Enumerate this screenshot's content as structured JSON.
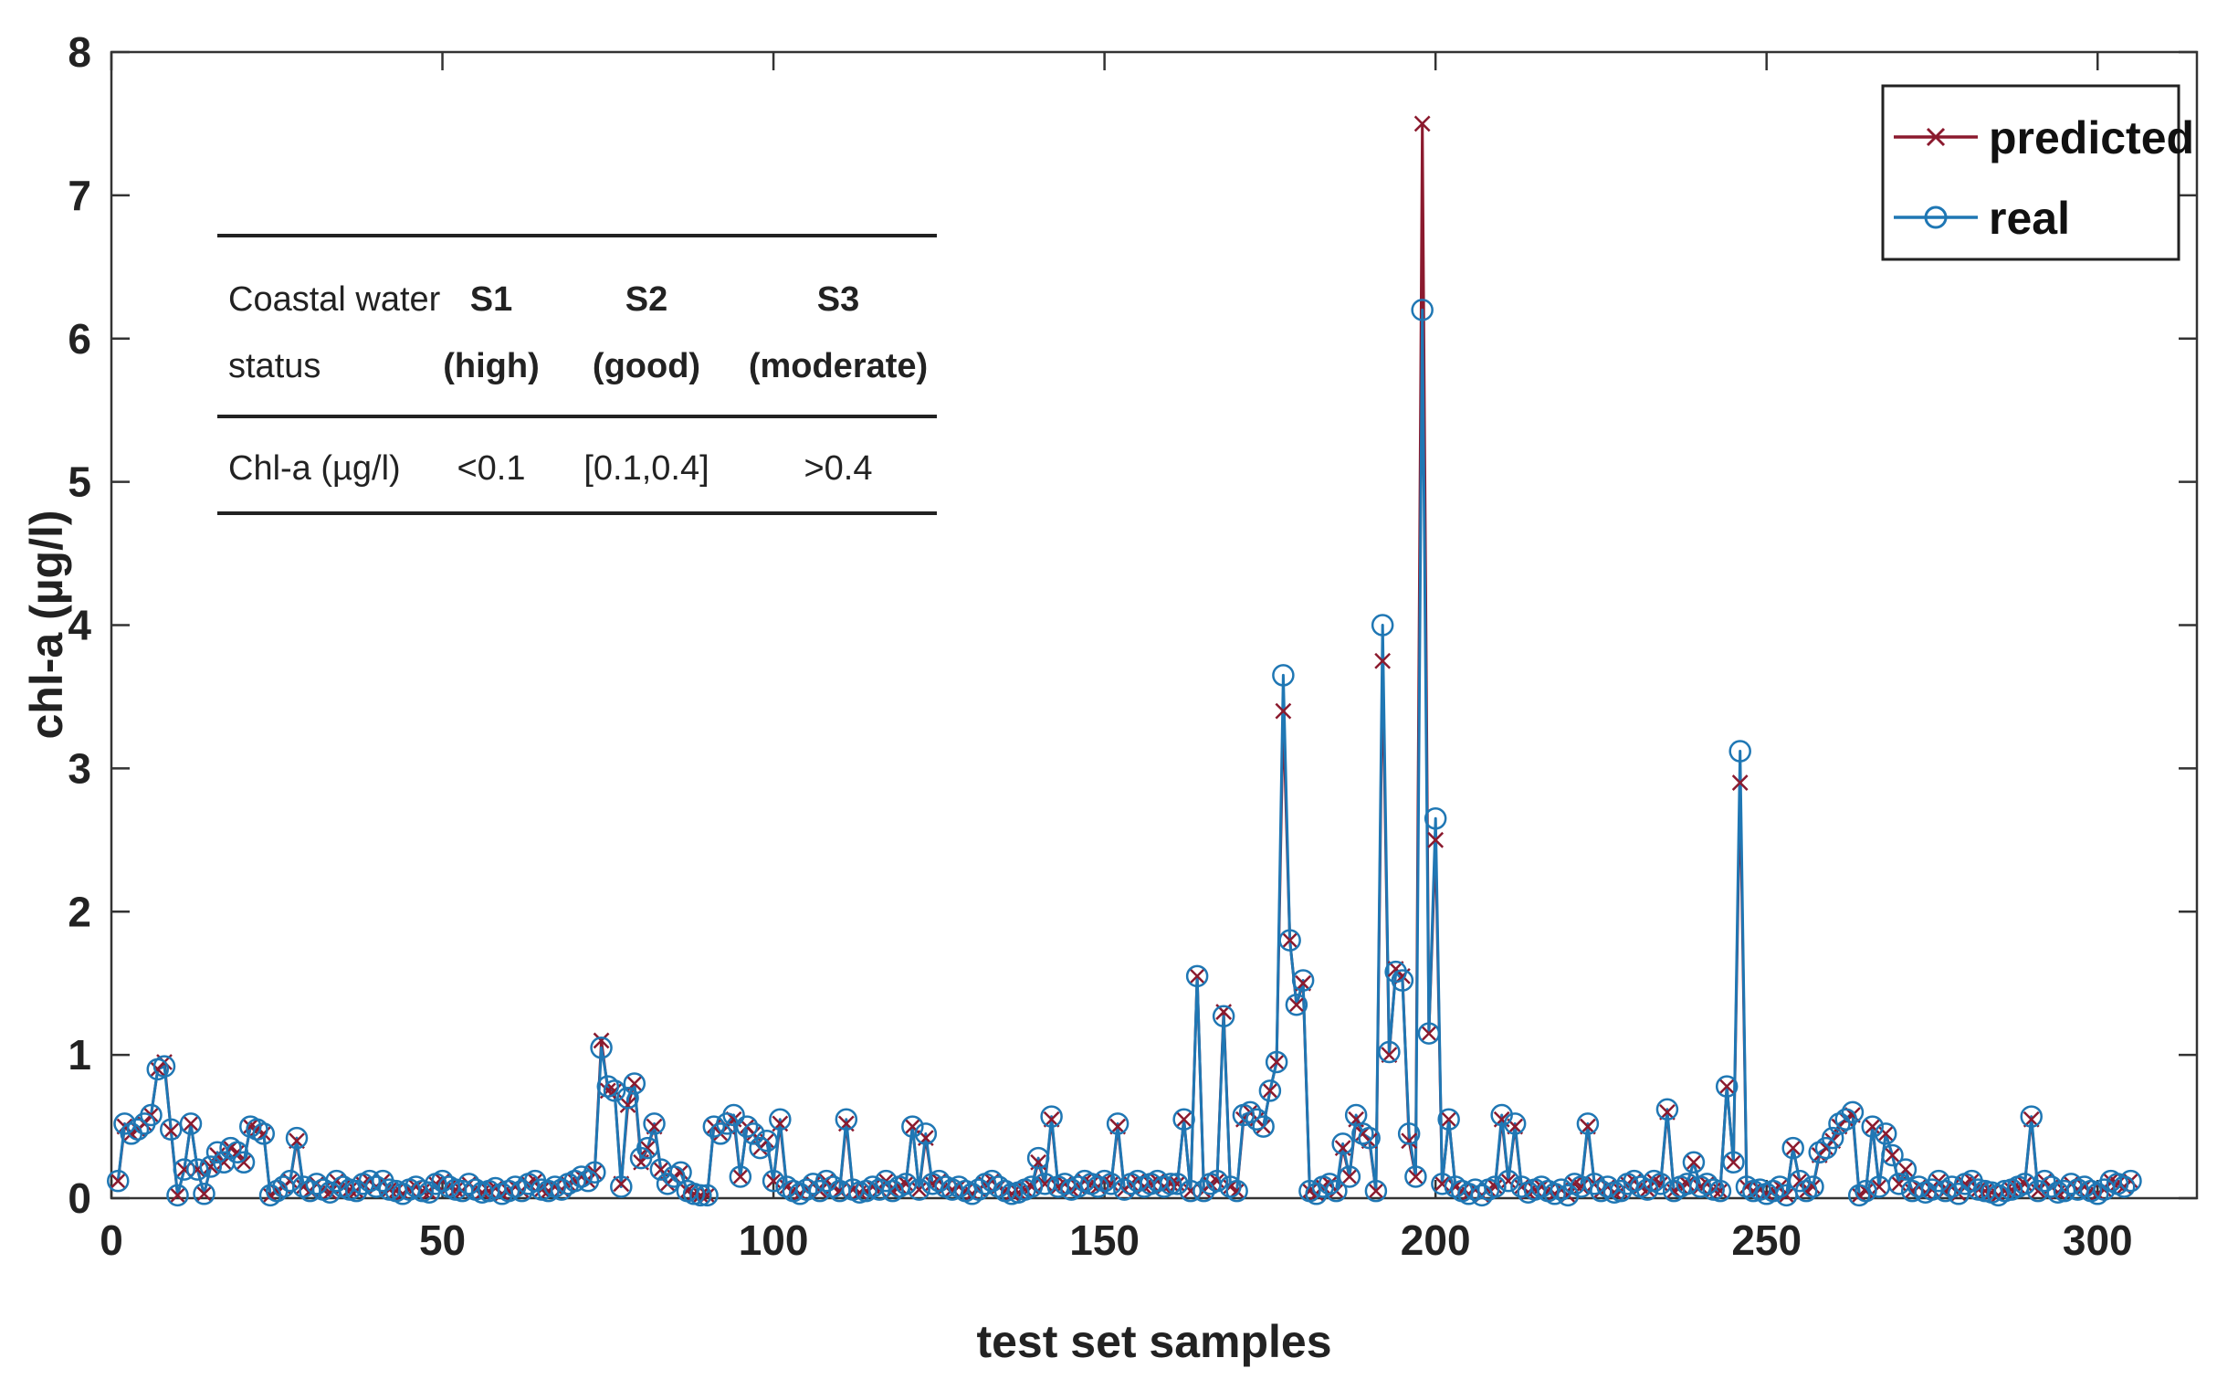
{
  "chart_data": {
    "type": "line",
    "xlabel": "test set samples",
    "ylabel": "chl-a (µg/l)",
    "xlim": [
      0,
      315
    ],
    "ylim": [
      0,
      8
    ],
    "xticks": [
      0,
      50,
      100,
      150,
      200,
      250,
      300
    ],
    "yticks": [
      0,
      1,
      2,
      3,
      4,
      5,
      6,
      7,
      8
    ],
    "grid": false,
    "legend_position": "top-right",
    "series": [
      {
        "name": "predicted",
        "color": "#8b1a2e",
        "marker": "x",
        "values": [
          0.12,
          0.5,
          0.45,
          0.48,
          0.52,
          0.58,
          0.9,
          0.95,
          0.47,
          0.02,
          0.2,
          0.52,
          0.2,
          0.03,
          0.22,
          0.3,
          0.25,
          0.35,
          0.32,
          0.25,
          0.5,
          0.48,
          0.45,
          0.02,
          0.05,
          0.08,
          0.12,
          0.4,
          0.08,
          0.05,
          0.1,
          0.06,
          0.04,
          0.12,
          0.08,
          0.06,
          0.05,
          0.1,
          0.12,
          0.08,
          0.12,
          0.06,
          0.05,
          0.03,
          0.06,
          0.08,
          0.05,
          0.04,
          0.1,
          0.12,
          0.08,
          0.06,
          0.05,
          0.1,
          0.06,
          0.04,
          0.05,
          0.07,
          0.03,
          0.05,
          0.08,
          0.05,
          0.1,
          0.12,
          0.06,
          0.05,
          0.08,
          0.06,
          0.1,
          0.12,
          0.15,
          0.12,
          0.18,
          1.1,
          0.75,
          0.75,
          0.1,
          0.65,
          0.8,
          0.25,
          0.35,
          0.5,
          0.2,
          0.1,
          0.15,
          0.18,
          0.05,
          0.03,
          0.02,
          0.02,
          0.5,
          0.45,
          0.5,
          0.55,
          0.15,
          0.5,
          0.45,
          0.35,
          0.4,
          0.12,
          0.52,
          0.08,
          0.05,
          0.03,
          0.06,
          0.1,
          0.05,
          0.12,
          0.08,
          0.05,
          0.52,
          0.06,
          0.04,
          0.05,
          0.08,
          0.06,
          0.12,
          0.05,
          0.08,
          0.1,
          0.5,
          0.06,
          0.42,
          0.1,
          0.12,
          0.08,
          0.06,
          0.08,
          0.05,
          0.03,
          0.06,
          0.1,
          0.12,
          0.08,
          0.05,
          0.03,
          0.04,
          0.06,
          0.08,
          0.25,
          0.1,
          0.55,
          0.08,
          0.1,
          0.06,
          0.08,
          0.12,
          0.1,
          0.08,
          0.12,
          0.1,
          0.5,
          0.06,
          0.1,
          0.12,
          0.08,
          0.1,
          0.12,
          0.08,
          0.1,
          0.1,
          0.55,
          0.05,
          1.55,
          0.05,
          0.1,
          0.12,
          1.3,
          0.08,
          0.05,
          0.55,
          0.6,
          0.55,
          0.5,
          0.75,
          0.95,
          3.4,
          1.8,
          1.35,
          1.5,
          0.05,
          0.03,
          0.08,
          0.1,
          0.05,
          0.35,
          0.15,
          0.55,
          0.45,
          0.4,
          0.05,
          3.75,
          1.0,
          1.6,
          1.55,
          0.4,
          0.15,
          7.5,
          1.15,
          2.5,
          0.1,
          0.55,
          0.08,
          0.05,
          0.03,
          0.06,
          0.02,
          0.06,
          0.08,
          0.55,
          0.12,
          0.5,
          0.08,
          0.04,
          0.06,
          0.08,
          0.05,
          0.03,
          0.06,
          0.02,
          0.1,
          0.08,
          0.5,
          0.1,
          0.05,
          0.08,
          0.04,
          0.05,
          0.1,
          0.12,
          0.08,
          0.06,
          0.12,
          0.1,
          0.6,
          0.05,
          0.08,
          0.1,
          0.25,
          0.08,
          0.1,
          0.06,
          0.05,
          0.78,
          0.25,
          2.9,
          0.08,
          0.05,
          0.06,
          0.03,
          0.05,
          0.08,
          0.02,
          0.35,
          0.12,
          0.05,
          0.08,
          0.3,
          0.35,
          0.4,
          0.5,
          0.55,
          0.58,
          0.02,
          0.05,
          0.5,
          0.08,
          0.45,
          0.3,
          0.1,
          0.2,
          0.05,
          0.08,
          0.04,
          0.06,
          0.12,
          0.05,
          0.08,
          0.03,
          0.1,
          0.12,
          0.06,
          0.05,
          0.04,
          0.02,
          0.05,
          0.06,
          0.08,
          0.1,
          0.55,
          0.05,
          0.12,
          0.08,
          0.04,
          0.05,
          0.1,
          0.06,
          0.08,
          0.05,
          0.03,
          0.06,
          0.12,
          0.1,
          0.08,
          0.12
        ],
        "x_start": 1
      },
      {
        "name": "real",
        "color": "#1f77b4",
        "marker": "o",
        "values": [
          0.12,
          0.52,
          0.45,
          0.48,
          0.52,
          0.58,
          0.9,
          0.92,
          0.48,
          0.02,
          0.2,
          0.52,
          0.2,
          0.03,
          0.22,
          0.32,
          0.25,
          0.35,
          0.32,
          0.25,
          0.5,
          0.48,
          0.45,
          0.02,
          0.05,
          0.08,
          0.12,
          0.42,
          0.08,
          0.05,
          0.1,
          0.06,
          0.04,
          0.12,
          0.08,
          0.06,
          0.05,
          0.1,
          0.12,
          0.08,
          0.12,
          0.06,
          0.05,
          0.03,
          0.06,
          0.08,
          0.05,
          0.04,
          0.1,
          0.12,
          0.08,
          0.06,
          0.05,
          0.1,
          0.06,
          0.04,
          0.05,
          0.07,
          0.03,
          0.05,
          0.08,
          0.05,
          0.1,
          0.12,
          0.06,
          0.05,
          0.08,
          0.06,
          0.1,
          0.12,
          0.15,
          0.12,
          0.18,
          1.05,
          0.78,
          0.75,
          0.08,
          0.7,
          0.8,
          0.28,
          0.35,
          0.52,
          0.2,
          0.1,
          0.15,
          0.18,
          0.05,
          0.03,
          0.02,
          0.02,
          0.5,
          0.45,
          0.52,
          0.58,
          0.15,
          0.5,
          0.45,
          0.35,
          0.4,
          0.12,
          0.55,
          0.08,
          0.05,
          0.03,
          0.06,
          0.1,
          0.05,
          0.12,
          0.08,
          0.05,
          0.55,
          0.06,
          0.04,
          0.05,
          0.08,
          0.06,
          0.12,
          0.05,
          0.08,
          0.1,
          0.5,
          0.06,
          0.45,
          0.1,
          0.12,
          0.08,
          0.06,
          0.08,
          0.05,
          0.03,
          0.06,
          0.1,
          0.12,
          0.08,
          0.05,
          0.03,
          0.04,
          0.06,
          0.08,
          0.28,
          0.1,
          0.57,
          0.08,
          0.1,
          0.06,
          0.08,
          0.12,
          0.1,
          0.08,
          0.12,
          0.1,
          0.52,
          0.06,
          0.1,
          0.12,
          0.08,
          0.1,
          0.12,
          0.08,
          0.1,
          0.1,
          0.55,
          0.05,
          1.55,
          0.05,
          0.1,
          0.12,
          1.27,
          0.08,
          0.05,
          0.58,
          0.6,
          0.55,
          0.5,
          0.75,
          0.95,
          3.65,
          1.8,
          1.35,
          1.52,
          0.05,
          0.03,
          0.08,
          0.1,
          0.05,
          0.38,
          0.15,
          0.58,
          0.45,
          0.42,
          0.05,
          4.0,
          1.02,
          1.58,
          1.52,
          0.45,
          0.15,
          6.2,
          1.15,
          2.65,
          0.1,
          0.55,
          0.08,
          0.05,
          0.03,
          0.06,
          0.02,
          0.06,
          0.08,
          0.58,
          0.12,
          0.52,
          0.08,
          0.04,
          0.06,
          0.08,
          0.05,
          0.03,
          0.06,
          0.02,
          0.1,
          0.08,
          0.52,
          0.1,
          0.05,
          0.08,
          0.04,
          0.05,
          0.1,
          0.12,
          0.08,
          0.06,
          0.12,
          0.1,
          0.62,
          0.05,
          0.08,
          0.1,
          0.25,
          0.08,
          0.1,
          0.06,
          0.05,
          0.78,
          0.25,
          3.12,
          0.08,
          0.05,
          0.06,
          0.03,
          0.05,
          0.08,
          0.02,
          0.35,
          0.12,
          0.05,
          0.08,
          0.32,
          0.35,
          0.42,
          0.52,
          0.55,
          0.6,
          0.02,
          0.05,
          0.5,
          0.08,
          0.45,
          0.3,
          0.1,
          0.2,
          0.05,
          0.08,
          0.04,
          0.06,
          0.12,
          0.05,
          0.08,
          0.03,
          0.1,
          0.12,
          0.06,
          0.05,
          0.04,
          0.02,
          0.05,
          0.06,
          0.08,
          0.1,
          0.57,
          0.05,
          0.12,
          0.08,
          0.04,
          0.05,
          0.1,
          0.06,
          0.08,
          0.05,
          0.03,
          0.06,
          0.12,
          0.1,
          0.08,
          0.12
        ],
        "x_start": 1
      }
    ]
  },
  "inset_table": {
    "header": {
      "col0_line1": "Coastal water",
      "col0_line2": "status",
      "col1_line1": "S1",
      "col1_line2": "(high)",
      "col2_line1": "S2",
      "col2_line2": "(good)",
      "col3_line1": "S3",
      "col3_line2": "(moderate)"
    },
    "row": {
      "label": "Chl-a (µg/l)",
      "s1": "<0.1",
      "s2": "[0.1,0.4]",
      "s3": ">0.4"
    }
  }
}
